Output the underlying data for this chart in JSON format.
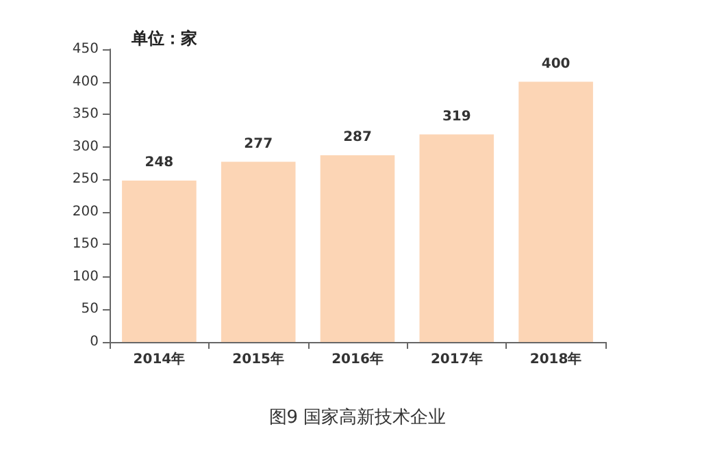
{
  "chart_data": {
    "type": "bar",
    "title": "图9 国家高新技术企业",
    "ylabel": "单位：家",
    "categories": [
      "2014年",
      "2015年",
      "2016年",
      "2017年",
      "2018年"
    ],
    "values": [
      248,
      277,
      287,
      319,
      400
    ],
    "color": "#fcd5b5",
    "ylim": [
      0,
      450
    ],
    "yticks": [
      0,
      50,
      100,
      150,
      200,
      250,
      300,
      350,
      400,
      450
    ],
    "grid": false,
    "data_labels": true
  }
}
